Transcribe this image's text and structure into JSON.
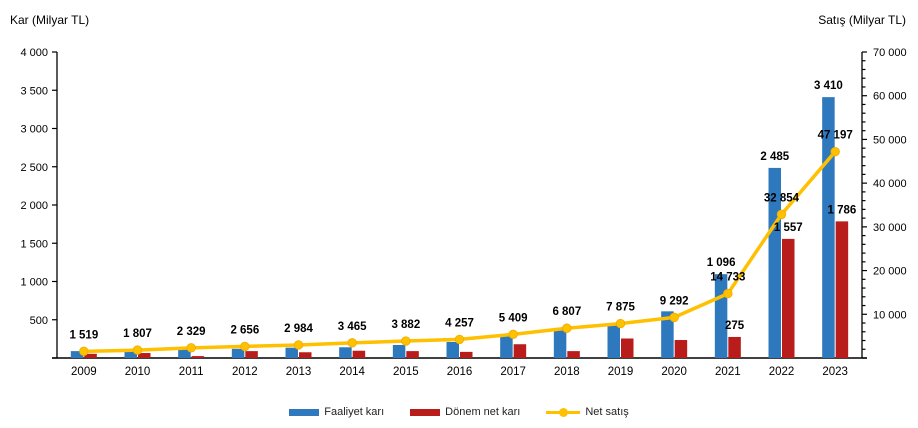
{
  "page": {
    "background": "#FFFFFF"
  },
  "chart_data": {
    "type": "bar",
    "subtype": "combo-bar-line-dual-axis",
    "title": "",
    "categories": [
      "2009",
      "2010",
      "2011",
      "2012",
      "2013",
      "2014",
      "2015",
      "2016",
      "2017",
      "2018",
      "2019",
      "2020",
      "2021",
      "2022",
      "2023"
    ],
    "left_axis": {
      "title": "Kar (Milyar TL)",
      "min": 0,
      "max": 4000,
      "major_step": 500,
      "label_format": "space-thousands"
    },
    "right_axis": {
      "title": "Satış (Milyar TL)",
      "min": 0,
      "max": 70000,
      "major_step": 10000,
      "minor_step": 2000,
      "label_format": "space-thousands"
    },
    "grid": false,
    "legend_position": "bottom",
    "colors": {
      "bar_blue": "#2E79BE",
      "bar_red": "#B91D1B",
      "line_gold": "#FFC000",
      "axis": "#000000",
      "label_text": "#000000"
    },
    "series": [
      {
        "name": "Faaliyet karı",
        "type": "bar",
        "axis": "left",
        "color": "#2E79BE",
        "values": [
          90,
          105,
          110,
          120,
          135,
          140,
          170,
          210,
          300,
          385,
          425,
          610,
          1096,
          2485,
          3410
        ],
        "labels": [
          null,
          null,
          null,
          null,
          null,
          null,
          null,
          null,
          null,
          null,
          null,
          null,
          "1 096",
          "2 485",
          "3 410"
        ]
      },
      {
        "name": "Dönem net karı",
        "type": "bar",
        "axis": "left",
        "color": "#B91D1B",
        "values": [
          55,
          65,
          25,
          90,
          75,
          95,
          90,
          80,
          180,
          90,
          255,
          235,
          275,
          1557,
          1786
        ],
        "labels": [
          null,
          null,
          null,
          null,
          null,
          null,
          null,
          null,
          null,
          null,
          null,
          null,
          "275",
          "1 557",
          "1 786"
        ]
      },
      {
        "name": "Net satış",
        "type": "line",
        "axis": "right",
        "color": "#FFC000",
        "values": [
          1519,
          1807,
          2329,
          2656,
          2984,
          3465,
          3882,
          4257,
          5409,
          6807,
          7875,
          9292,
          14733,
          32854,
          47197
        ],
        "labels": [
          "1 519",
          "1 807",
          "2 329",
          "2 656",
          "2 984",
          "3 465",
          "3 882",
          "4 257",
          "5 409",
          "6 807",
          "7 875",
          "9 292",
          "14 733",
          "32 854",
          "47 197"
        ]
      }
    ]
  }
}
